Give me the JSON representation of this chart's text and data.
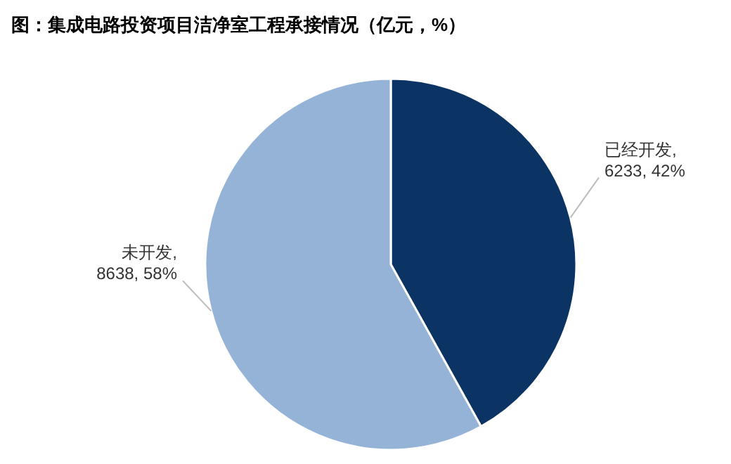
{
  "chart_data": {
    "type": "pie",
    "title": "图：集成电路投资项目洁净室工程承接情况（亿元，%）",
    "categories": [
      "已经开发",
      "未开发"
    ],
    "values": [
      6233,
      8638
    ],
    "value_labels": [
      ", 6233, 42%",
      ", 8638, 58%"
    ],
    "colors": [
      "#0b3363",
      "#95b3d7"
    ]
  }
}
